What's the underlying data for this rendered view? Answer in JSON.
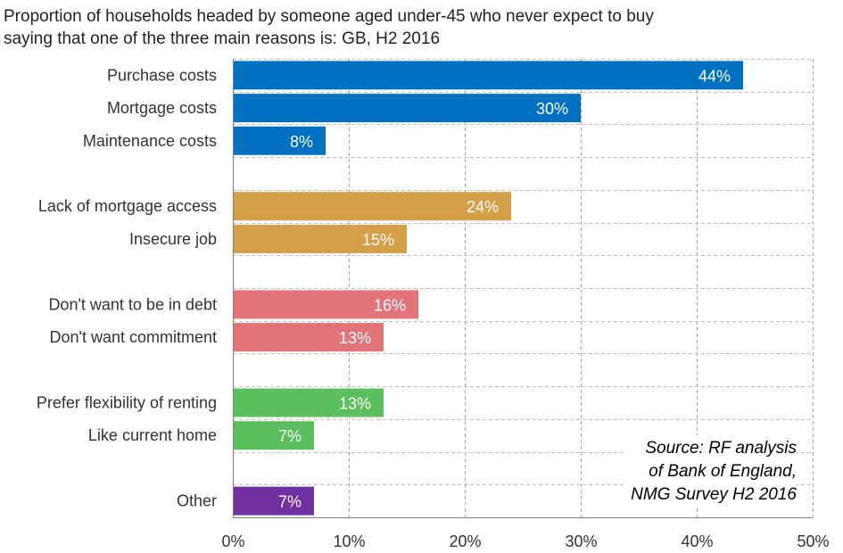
{
  "chart_data": {
    "type": "bar",
    "orientation": "horizontal",
    "title_lines": [
      "Proportion of households  headed by someone aged under-45  who never expect to buy",
      "saying that one of the three main reasons is: GB, H2 2016"
    ],
    "categories": [
      "Purchase costs",
      "Mortgage costs",
      "Maintenance costs",
      "",
      "Lack of mortgage access",
      "Insecure job",
      "",
      "Don't want to be in debt",
      "Don't want commitment",
      "",
      "Prefer flexibility of renting",
      "Like current home",
      "",
      "Other"
    ],
    "values": [
      44,
      30,
      8,
      null,
      24,
      15,
      null,
      16,
      13,
      null,
      13,
      7,
      null,
      7
    ],
    "data_labels": [
      "44%",
      "30%",
      "8%",
      "",
      "24%",
      "15%",
      "",
      "16%",
      "13%",
      "",
      "13%",
      "7%",
      "",
      "7%"
    ],
    "bar_colors": [
      "#0070c0",
      "#0070c0",
      "#0070c0",
      "",
      "#d39f47",
      "#d39f47",
      "",
      "#e27479",
      "#e27479",
      "",
      "#5cbf5e",
      "#5cbf5e",
      "",
      "#7030a0"
    ],
    "xlim": [
      0,
      50
    ],
    "xticks": [
      0,
      10,
      20,
      30,
      40,
      50
    ],
    "xtick_labels": [
      "0%",
      "10%",
      "20%",
      "30%",
      "40%",
      "50%"
    ],
    "xlabel": "",
    "ylabel": "",
    "grid": true,
    "source_note": [
      "Source: RF analysis",
      "of Bank of England,",
      "NMG Survey H2 2016"
    ]
  }
}
